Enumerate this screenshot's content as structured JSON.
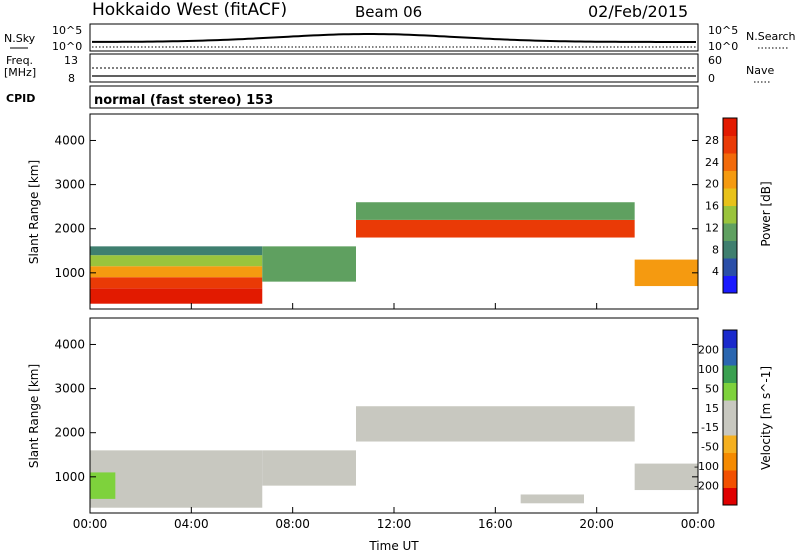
{
  "header": {
    "title": "Hokkaido West (fitACF)",
    "beam": "Beam 06",
    "date": "02/Feb/2015"
  },
  "strip": {
    "nsky_label": "N.Sky",
    "nsearch_label": "N.Search",
    "freq_label_1": "Freq.",
    "freq_label_2": "[MHz]",
    "nave_label": "Nave",
    "cpid_label": "CPID",
    "cpid_text": "normal (fast stereo) 153",
    "noise_ticks_left": [
      "10^5",
      "10^0"
    ],
    "noise_ticks_right": [
      "10^5",
      "10^0"
    ],
    "freq_ticks": [
      "13",
      "8"
    ],
    "nave_ticks": [
      "60",
      "0"
    ]
  },
  "colors": {
    "power": [
      "#1a1aff",
      "#2b4fa8",
      "#3f7f6f",
      "#5fa060",
      "#9ac43c",
      "#e8c21a",
      "#f59a10",
      "#f26a0a",
      "#ea3a06",
      "#e21a00"
    ],
    "velocity": [
      "#e00000",
      "#f25000",
      "#f58a00",
      "#f5b020",
      "#c8c8c0",
      "#c8c8c0",
      "#7ed23c",
      "#3aa050",
      "#2a66b0",
      "#1a2acc"
    ]
  },
  "chart_data": [
    {
      "type": "heatmap",
      "panel": "power",
      "xlabel": "Time UT",
      "ylabel": "Slant Range [km]",
      "x_ticks": [
        "00:00",
        "04:00",
        "08:00",
        "12:00",
        "16:00",
        "20:00",
        "00:00"
      ],
      "y_ticks": [
        "1000",
        "2000",
        "3000",
        "4000"
      ],
      "xlim": [
        0,
        24
      ],
      "ylim": [
        180,
        4600
      ],
      "colorbar": {
        "label": "Power [dB]",
        "ticks": [
          "4",
          "8",
          "12",
          "16",
          "20",
          "24",
          "28"
        ],
        "range": [
          0,
          30
        ]
      },
      "regions": [
        {
          "t0": 0,
          "t1": 6.8,
          "r0": 300,
          "r1": 650,
          "level": 29
        },
        {
          "t0": 0,
          "t1": 6.8,
          "r0": 650,
          "r1": 900,
          "level": 24
        },
        {
          "t0": 0,
          "t1": 6.8,
          "r0": 900,
          "r1": 1150,
          "level": 18
        },
        {
          "t0": 0,
          "t1": 6.8,
          "r0": 1150,
          "r1": 1400,
          "level": 12
        },
        {
          "t0": 0,
          "t1": 6.8,
          "r0": 1400,
          "r1": 1600,
          "level": 6
        },
        {
          "t0": 6.8,
          "t1": 10.5,
          "r0": 800,
          "r1": 1600,
          "level": 10
        },
        {
          "t0": 10.5,
          "t1": 21.5,
          "r0": 1800,
          "r1": 2200,
          "level": 26
        },
        {
          "t0": 10.5,
          "t1": 21.5,
          "r0": 2200,
          "r1": 2600,
          "level": 9
        },
        {
          "t0": 21.5,
          "t1": 24,
          "r0": 700,
          "r1": 1300,
          "level": 18
        }
      ]
    },
    {
      "type": "heatmap",
      "panel": "velocity",
      "xlabel": "Time UT",
      "ylabel": "Slant Range [km]",
      "x_ticks": [
        "00:00",
        "04:00",
        "08:00",
        "12:00",
        "16:00",
        "20:00",
        "00:00"
      ],
      "y_ticks": [
        "1000",
        "2000",
        "3000",
        "4000"
      ],
      "xlim": [
        0,
        24
      ],
      "ylim": [
        180,
        4600
      ],
      "colorbar": {
        "label": "Velocity [m s^-1]",
        "ticks": [
          "-200",
          "-100",
          "-50",
          "-15",
          "15",
          "50",
          "100",
          "200"
        ],
        "range": [
          -250,
          250
        ]
      },
      "regions": [
        {
          "t0": 0,
          "t1": 6.8,
          "r0": 300,
          "r1": 1600,
          "level": 0
        },
        {
          "t0": 6.8,
          "t1": 10.5,
          "r0": 800,
          "r1": 1600,
          "level": 0
        },
        {
          "t0": 10.5,
          "t1": 21.5,
          "r0": 1800,
          "r1": 2600,
          "level": 0
        },
        {
          "t0": 21.5,
          "t1": 24,
          "r0": 700,
          "r1": 1300,
          "level": 0
        },
        {
          "t0": 0,
          "t1": 1,
          "r0": 500,
          "r1": 1100,
          "level": 60
        },
        {
          "t0": 17,
          "t1": 19.5,
          "r0": 400,
          "r1": 600,
          "level": -40
        }
      ]
    }
  ]
}
